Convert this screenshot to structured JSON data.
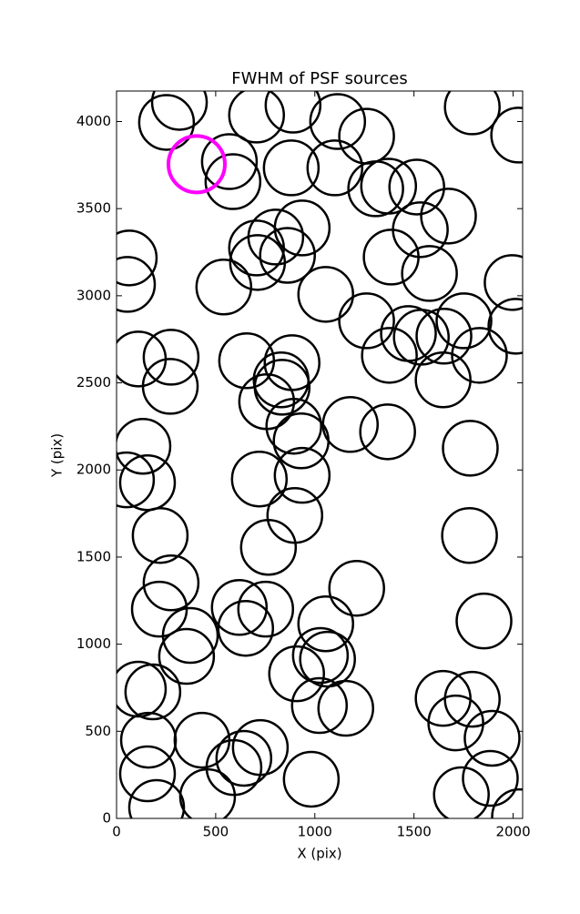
{
  "chart_data": {
    "type": "scatter",
    "title": "FWHM of PSF sources",
    "xlabel": "X (pix)",
    "ylabel": "Y (pix)",
    "xlim": [
      0,
      2048
    ],
    "ylim": [
      0,
      4175
    ],
    "xticks": [
      0,
      500,
      1000,
      1500,
      2000
    ],
    "yticks": [
      0,
      500,
      1000,
      1500,
      2000,
      2500,
      3000,
      3500,
      4000
    ],
    "series": [
      {
        "color": "#000000",
        "x": [
          317,
          252,
          569,
          587,
          706,
          890,
          1115,
          1261,
          881,
          1101,
          1307,
          1372,
          1514,
          1794,
          2028,
          1674,
          1532,
          1578,
          1385,
          936,
          803,
          706,
          711,
          862,
          541,
          64,
          55,
          1055,
          1995,
          2014,
          1261,
          1472,
          1537,
          1651,
          1752,
          1830,
          1376,
          1647,
          110,
          275,
          271,
          656,
          885,
          830,
          835,
          757,
          894,
          931,
          1179,
          1367,
          1784,
          133,
          50,
          156,
          720,
          936,
          899,
          220,
          766,
          1780,
          275,
          1211,
          216,
          619,
          752,
          651,
          372,
          353,
          1055,
          1853,
          1028,
          1064,
          908,
          1023,
          1156,
          110,
          183,
          1647,
          1794,
          1711,
          1894,
          1885,
          1739,
          161,
          431,
          642,
          725,
          592,
          156,
          459,
          202,
          982,
          2032
        ],
        "y": [
          4110,
          3995,
          3770,
          3655,
          4037,
          4094,
          4000,
          3916,
          3734,
          3734,
          3614,
          3629,
          3624,
          4084,
          3922,
          3457,
          3379,
          3128,
          3222,
          3389,
          3337,
          3274,
          3191,
          3232,
          3050,
          3217,
          3065,
          3008,
          3076,
          2825,
          2856,
          2783,
          2762,
          2768,
          2856,
          2658,
          2658,
          2517,
          2637,
          2647,
          2480,
          2627,
          2616,
          2517,
          2475,
          2392,
          2251,
          2167,
          2261,
          2219,
          2125,
          2136,
          1943,
          1927,
          1948,
          1969,
          1739,
          1624,
          1556,
          1624,
          1352,
          1321,
          1201,
          1211,
          1201,
          1091,
          1050,
          930,
          1117,
          1133,
          935,
          914,
          830,
          648,
          632,
          742,
          726,
          689,
          684,
          548,
          460,
          230,
          136,
          449,
          449,
          345,
          407,
          292,
          256,
          125,
          63,
          225,
          10
        ]
      },
      {
        "color": "#ff00ff",
        "x": [
          404
        ],
        "y": [
          3755
        ]
      }
    ]
  }
}
